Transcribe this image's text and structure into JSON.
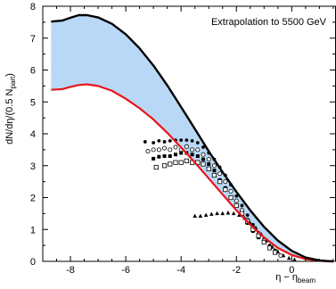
{
  "chart_data": {
    "type": "line",
    "title": "",
    "annotation": "Extrapolation  to 5500 GeV",
    "xlabel": "η − η",
    "xlabel_sub": "beam",
    "ylabel": "dN/dη/(0.5 N",
    "ylabel_sub": "part",
    "ylabel_end": ")",
    "xlim": [
      -9,
      1.6
    ],
    "ylim": [
      0,
      8
    ],
    "x_ticks": [
      -8,
      -6,
      -4,
      -2,
      0
    ],
    "x_tick_labels": [
      "-8",
      "-6",
      "-4",
      "-2",
      "0"
    ],
    "y_ticks": [
      0,
      1,
      2,
      3,
      4,
      5,
      6,
      7,
      8
    ],
    "y_tick_labels": [
      "0",
      "1",
      "2",
      "3",
      "4",
      "5",
      "6",
      "7",
      "8"
    ],
    "band": {
      "fill": "#b8d8f5",
      "upper": {
        "name": "",
        "color": "#000000",
        "x": [
          -8.7,
          -8.3,
          -8.0,
          -7.7,
          -7.4,
          -7.0,
          -6.5,
          -6.0,
          -5.5,
          -5.0,
          -4.5,
          -4.0,
          -3.5,
          -3.0,
          -2.5,
          -2.0,
          -1.5,
          -1.0,
          -0.5,
          0.0,
          0.5,
          1.0,
          1.3,
          1.5
        ],
        "y": [
          7.52,
          7.55,
          7.64,
          7.72,
          7.72,
          7.65,
          7.45,
          7.12,
          6.68,
          6.14,
          5.52,
          4.84,
          4.15,
          3.45,
          2.8,
          2.18,
          1.6,
          1.08,
          0.65,
          0.33,
          0.12,
          0.03,
          0.01,
          0.0
        ]
      },
      "lower": {
        "name": "",
        "color": "#e8141a",
        "x": [
          -8.7,
          -8.3,
          -8.0,
          -7.7,
          -7.4,
          -7.0,
          -6.5,
          -6.0,
          -5.5,
          -5.0,
          -4.5,
          -4.0,
          -3.5,
          -3.0,
          -2.5,
          -2.0,
          -1.5,
          -1.0,
          -0.5,
          0.0,
          0.5,
          1.0,
          1.3,
          1.5
        ],
        "y": [
          5.38,
          5.4,
          5.47,
          5.53,
          5.55,
          5.5,
          5.35,
          5.1,
          4.8,
          4.45,
          4.03,
          3.57,
          3.1,
          2.6,
          2.1,
          1.6,
          1.15,
          0.75,
          0.42,
          0.2,
          0.07,
          0.02,
          0.0,
          0.0
        ]
      }
    },
    "scatter_series": [
      {
        "name": "",
        "marker": "filled-circle",
        "x": [
          -5.3,
          -5.0,
          -4.8,
          -4.6,
          -4.4,
          -4.2,
          -4.0,
          -3.8,
          -3.6,
          -3.4,
          -3.2,
          -3.0,
          -2.8,
          -2.6,
          -2.4,
          -2.2,
          -2.0,
          -1.8,
          -1.6,
          -1.4,
          -1.2,
          -1.0,
          -0.8,
          -0.6
        ],
        "y": [
          3.75,
          3.72,
          3.78,
          3.75,
          3.78,
          3.8,
          3.8,
          3.8,
          3.78,
          3.72,
          3.58,
          3.4,
          3.2,
          2.95,
          2.7,
          2.4,
          2.05,
          1.75,
          1.45,
          1.15,
          0.9,
          0.7,
          0.5,
          0.35
        ]
      },
      {
        "name": "",
        "marker": "open-circle",
        "x": [
          -5.2,
          -5.0,
          -4.8,
          -4.6,
          -4.4,
          -4.2,
          -4.0,
          -3.8,
          -3.6,
          -3.4,
          -3.2,
          -3.0,
          -2.8,
          -2.6,
          -2.4,
          -2.2,
          -2.0,
          -1.8,
          -1.6,
          -1.4,
          -1.2,
          -1.0,
          -0.8,
          -0.6,
          -0.4
        ],
        "y": [
          3.45,
          3.5,
          3.5,
          3.55,
          3.5,
          3.58,
          3.5,
          3.6,
          3.5,
          3.5,
          3.35,
          3.2,
          3.0,
          2.75,
          2.5,
          2.2,
          1.9,
          1.6,
          1.3,
          1.05,
          0.85,
          0.65,
          0.45,
          0.3,
          0.18
        ]
      },
      {
        "name": "",
        "marker": "filled-square",
        "x": [
          -5.0,
          -4.8,
          -4.6,
          -4.4,
          -4.2,
          -4.0,
          -3.8,
          -3.6,
          -3.4,
          -3.2,
          -3.0,
          -2.8,
          -2.6,
          -2.4,
          -2.2,
          -2.0,
          -1.8,
          -1.6,
          -1.4,
          -1.2
        ],
        "y": [
          3.22,
          3.28,
          3.3,
          3.3,
          3.35,
          3.4,
          3.4,
          3.35,
          3.3,
          3.2,
          3.05,
          2.85,
          2.55,
          2.3,
          2.0,
          1.75,
          1.45,
          1.2,
          0.95,
          0.75
        ]
      },
      {
        "name": "",
        "marker": "open-square",
        "x": [
          -4.9,
          -4.6,
          -4.4,
          -4.2,
          -4.0,
          -3.8,
          -3.6,
          -3.4,
          -3.2,
          -3.0,
          -2.8,
          -2.6,
          -2.4,
          -2.2,
          -2.0,
          -1.8,
          -1.6,
          -1.4,
          -1.2,
          -1.0,
          -0.8,
          -0.6
        ],
        "y": [
          2.95,
          3.0,
          3.05,
          3.1,
          3.1,
          3.15,
          3.1,
          3.1,
          3.05,
          2.9,
          2.7,
          2.5,
          2.25,
          2.0,
          1.75,
          1.5,
          1.25,
          1.0,
          0.8,
          0.6,
          0.42,
          0.28
        ]
      },
      {
        "name": "",
        "marker": "filled-triangle",
        "x": [
          -3.5,
          -3.3,
          -3.1,
          -2.9,
          -2.7,
          -2.5,
          -2.3,
          -2.1,
          -1.9,
          -1.7,
          -1.5,
          -1.3,
          -1.1,
          -0.9,
          -0.7,
          -0.5,
          -0.3,
          -0.1,
          0.1
        ],
        "y": [
          1.42,
          1.42,
          1.45,
          1.48,
          1.5,
          1.5,
          1.52,
          1.5,
          1.45,
          1.35,
          1.2,
          1.05,
          0.85,
          0.65,
          0.45,
          0.3,
          0.18,
          0.1,
          0.05
        ]
      }
    ]
  }
}
